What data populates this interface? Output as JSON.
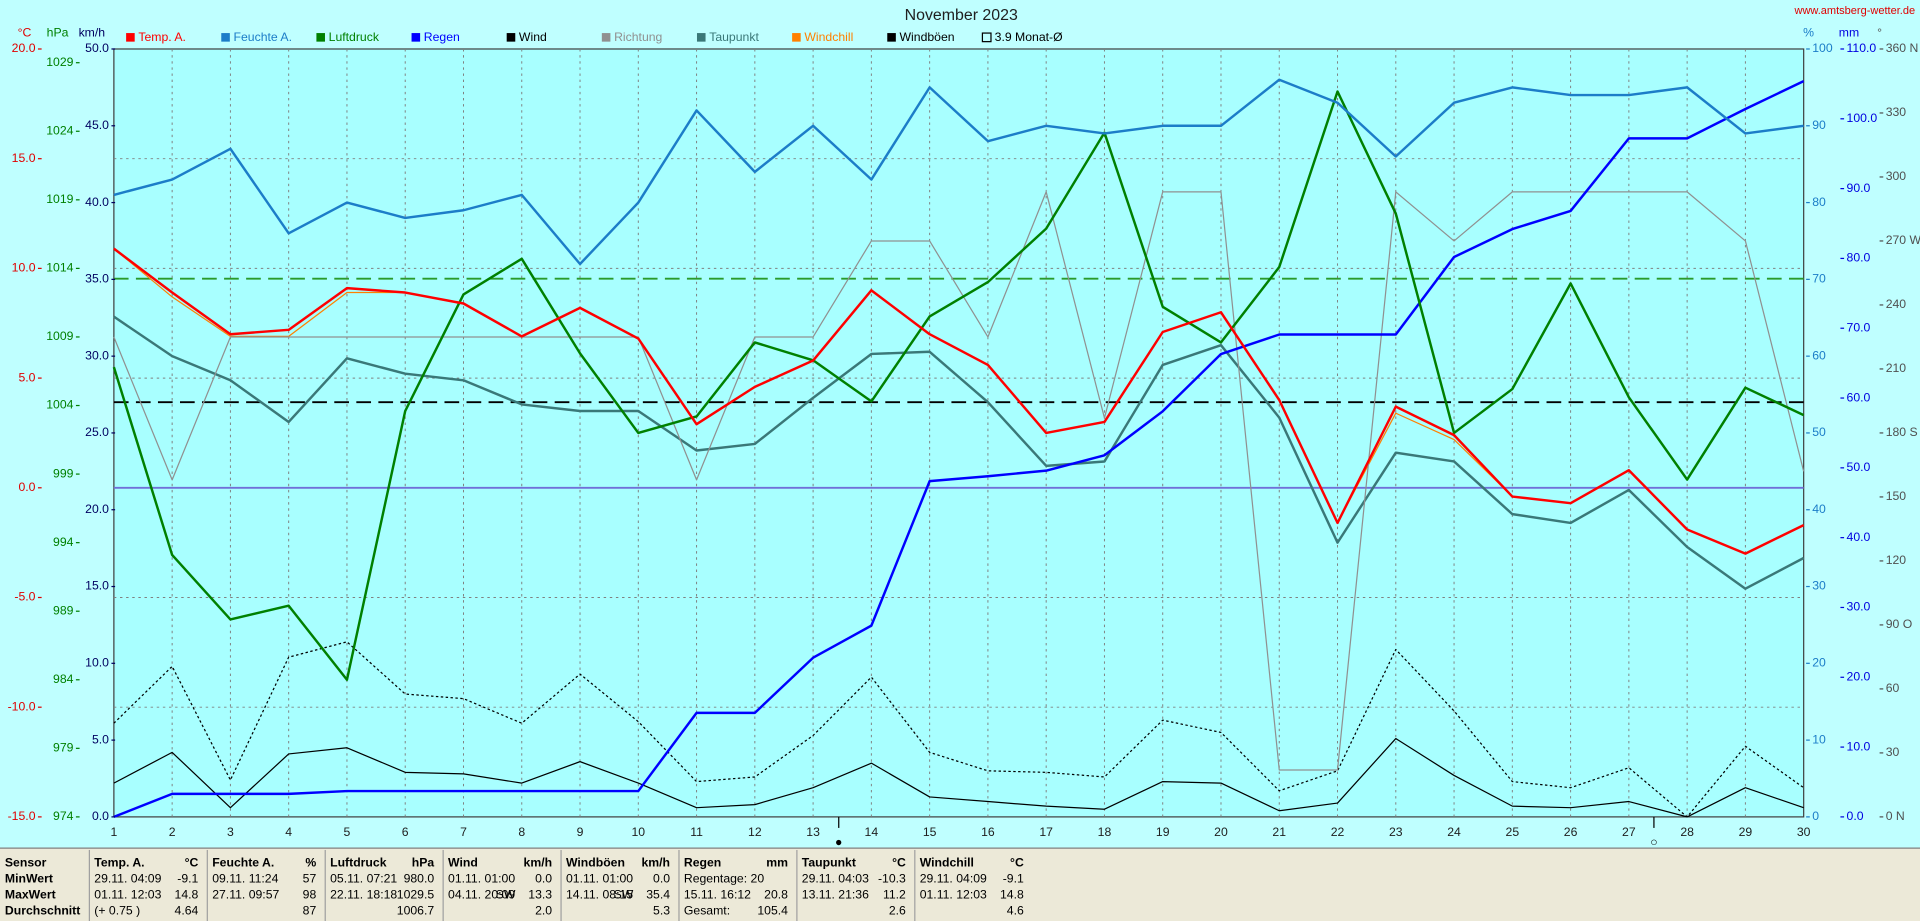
{
  "chart_data": {
    "type": "line",
    "title": "November 2023",
    "site": "www.amtsberg-wetter.de",
    "x": [
      1,
      2,
      3,
      4,
      5,
      6,
      7,
      8,
      9,
      10,
      11,
      12,
      13,
      14,
      15,
      16,
      17,
      18,
      19,
      20,
      21,
      22,
      23,
      24,
      25,
      26,
      27,
      28,
      29,
      30
    ],
    "xlim": [
      1,
      30
    ],
    "grid": true,
    "axes": [
      {
        "title": "°C",
        "side": "left",
        "color": "#e00000",
        "lim": [
          -15,
          20
        ],
        "ticks": [
          {
            "value": -15,
            "label": "-15.0"
          },
          {
            "value": -10,
            "label": "-10.0"
          },
          {
            "value": -5,
            "label": "-5.0"
          },
          {
            "value": 0,
            "label": "0.0"
          },
          {
            "value": 5,
            "label": "5.0"
          },
          {
            "value": 10,
            "label": "10.0"
          },
          {
            "value": 15,
            "label": "15.0"
          },
          {
            "value": 20,
            "label": "20.0"
          }
        ]
      },
      {
        "title": "hPa",
        "side": "left",
        "color": "#008000",
        "lim": [
          974,
          1030
        ],
        "ticks": [
          974,
          979,
          984,
          989,
          994,
          999,
          1004,
          1009,
          1014,
          1019,
          1024,
          1029
        ]
      },
      {
        "title": "km/h",
        "side": "left",
        "color": "#000060",
        "lim": [
          0,
          50
        ],
        "ticks": [
          {
            "value": 0,
            "label": "0.0"
          },
          {
            "value": 5,
            "label": "5.0"
          },
          {
            "value": 10,
            "label": "10.0"
          },
          {
            "value": 15,
            "label": "15.0"
          },
          {
            "value": 20,
            "label": "20.0"
          },
          {
            "value": 25,
            "label": "25.0"
          },
          {
            "value": 30,
            "label": "30.0"
          },
          {
            "value": 35,
            "label": "35.0"
          },
          {
            "value": 40,
            "label": "40.0"
          },
          {
            "value": 45,
            "label": "45.0"
          },
          {
            "value": 50,
            "label": "50.0"
          }
        ]
      },
      {
        "title": "%",
        "side": "right",
        "color": "#1c7dc8",
        "lim": [
          0,
          100
        ],
        "ticks": [
          0,
          10,
          20,
          30,
          40,
          50,
          60,
          70,
          80,
          90,
          100
        ]
      },
      {
        "title": "mm",
        "side": "right",
        "color": "#0000e0",
        "lim": [
          0,
          110
        ],
        "ticks": [
          {
            "value": 0,
            "label": "0.0"
          },
          {
            "value": 10,
            "label": "10.0"
          },
          {
            "value": 20,
            "label": "20.0"
          },
          {
            "value": 30,
            "label": "30.0"
          },
          {
            "value": 40,
            "label": "40.0"
          },
          {
            "value": 50,
            "label": "50.0"
          },
          {
            "value": 60,
            "label": "60.0"
          },
          {
            "value": 70,
            "label": "70.0"
          },
          {
            "value": 80,
            "label": "80.0"
          },
          {
            "value": 90,
            "label": "90.0"
          },
          {
            "value": 100,
            "label": "100.0"
          },
          {
            "value": 110,
            "label": "110.0"
          }
        ]
      },
      {
        "title": "°",
        "side": "right",
        "color": "#505050",
        "lim": [
          0,
          360
        ],
        "ticks": [
          {
            "value": 0,
            "label": "0 N"
          },
          30,
          60,
          {
            "value": 90,
            "label": "90 O"
          },
          120,
          150,
          {
            "value": 180,
            "label": "180 S"
          },
          210,
          240,
          {
            "value": 270,
            "label": "270 W"
          },
          300,
          330,
          {
            "value": 360,
            "label": "360 N"
          }
        ]
      }
    ],
    "series": [
      {
        "name": "Temp. A.",
        "color": "#ff0000",
        "axis": 0,
        "style": "bold",
        "values": [
          10.9,
          8.9,
          7.0,
          7.2,
          9.1,
          8.9,
          8.4,
          6.9,
          8.2,
          6.8,
          2.9,
          4.6,
          5.8,
          9.0,
          7.0,
          5.6,
          2.5,
          3.0,
          7.1,
          8.0,
          4.0,
          -1.6,
          3.7,
          2.4,
          -0.4,
          -0.7,
          0.8,
          -1.9,
          -3.0,
          -1.7
        ]
      },
      {
        "name": "Feuchte A.",
        "color": "#1c7dc8",
        "axis": 3,
        "style": "bold",
        "values": [
          81,
          83,
          87,
          76,
          80,
          78,
          79,
          81,
          72,
          80,
          92,
          84,
          90,
          83,
          95,
          88,
          90,
          89,
          90,
          90,
          96,
          93,
          86,
          93,
          95,
          94,
          94,
          95,
          89,
          90
        ]
      },
      {
        "name": "Luftdruck",
        "color": "#008000",
        "axis": 1,
        "style": "bold",
        "values": [
          1006.8,
          993.1,
          988.4,
          989.4,
          984.0,
          1003.6,
          1012.1,
          1014.7,
          1007.8,
          1002.0,
          1003.2,
          1008.6,
          1007.3,
          1004.3,
          1010.5,
          1013.0,
          1016.9,
          1023.9,
          1011.2,
          1008.6,
          1014.1,
          1026.9,
          1018.0,
          1002.0,
          1005.2,
          1012.9,
          1004.6,
          998.6,
          1005.3,
          1003.3
        ]
      },
      {
        "name": "Regen",
        "color": "#0000ff",
        "axis": 4,
        "style": "bold",
        "values": [
          0,
          3.3,
          3.3,
          3.3,
          3.7,
          3.7,
          3.7,
          3.7,
          3.7,
          3.7,
          14.9,
          14.9,
          22.8,
          27.4,
          48.1,
          48.8,
          49.6,
          51.8,
          58.1,
          66.3,
          69.1,
          69.1,
          69.1,
          80.2,
          84.2,
          86.8,
          97.2,
          97.2,
          101.4,
          105.4
        ]
      },
      {
        "name": "Wind",
        "color": "#000000",
        "axis": 2,
        "style": "thin",
        "values": [
          2.2,
          4.2,
          0.6,
          4.1,
          4.5,
          2.9,
          2.8,
          2.2,
          3.6,
          2.2,
          0.6,
          0.8,
          1.9,
          3.5,
          1.3,
          1.0,
          0.7,
          0.5,
          2.3,
          2.2,
          0.4,
          0.9,
          5.1,
          2.7,
          0.7,
          0.6,
          1.0,
          0,
          1.9,
          0.6
        ]
      },
      {
        "name": "Richtung",
        "color": "#909090",
        "axis": 5,
        "style": "thin",
        "values": [
          225,
          158,
          225,
          225,
          225,
          225,
          225,
          225,
          225,
          225,
          158,
          225,
          225,
          270,
          270,
          225,
          293,
          187,
          293,
          293,
          22,
          22,
          293,
          270,
          293,
          293,
          293,
          293,
          270,
          162
        ]
      },
      {
        "name": "Taupunkt",
        "color": "#3a7878",
        "axis": 0,
        "style": "bold",
        "values": [
          7.8,
          6.0,
          4.9,
          3.0,
          5.9,
          5.2,
          4.9,
          3.8,
          3.5,
          3.5,
          1.7,
          2.0,
          4.1,
          6.1,
          6.2,
          3.9,
          1.0,
          1.2,
          5.6,
          6.5,
          3.2,
          -2.5,
          1.6,
          1.2,
          -1.2,
          -1.6,
          -0.1,
          -2.7,
          -4.6,
          -3.2
        ]
      },
      {
        "name": "Windchill",
        "color": "#ff8000",
        "axis": 0,
        "style": "thin",
        "values": [
          10.9,
          8.7,
          6.9,
          6.9,
          8.9,
          8.9,
          8.4,
          6.9,
          8.2,
          6.8,
          2.9,
          4.6,
          5.8,
          9.0,
          7.0,
          5.6,
          2.5,
          3.0,
          7.1,
          8.0,
          4.0,
          -1.6,
          3.4,
          2.2,
          -0.4,
          -0.7,
          0.8,
          -1.9,
          -3.0,
          -1.7
        ]
      },
      {
        "name": "Windböen",
        "color": "#000000",
        "axis": 2,
        "style": "dotted",
        "values": [
          6.1,
          9.8,
          2.4,
          10.4,
          11.4,
          8.0,
          7.7,
          6.1,
          9.3,
          6.2,
          2.3,
          2.6,
          5.3,
          9.1,
          4.2,
          3.0,
          2.9,
          2.6,
          6.3,
          5.5,
          1.7,
          3.0,
          10.9,
          6.9,
          2.3,
          1.9,
          3.2,
          0,
          4.6,
          1.9
        ]
      }
    ],
    "reference_lines": [
      {
        "name": "3.9 Monat-Ø",
        "value": 3.9,
        "axis": 0,
        "color": "#000000",
        "style": "dashed"
      },
      {
        "value": 1013.25,
        "axis": 1,
        "color": "#2a9a2a",
        "style": "dashed"
      },
      {
        "value": 0,
        "axis": 0,
        "color": "#7070d8",
        "style": "solid"
      }
    ],
    "moon_phases": [
      {
        "x": 13.44,
        "symbol": "●"
      },
      {
        "x": 27.43,
        "symbol": "○"
      }
    ]
  },
  "table": {
    "header": "Sensor",
    "row_labels": [
      "MinWert",
      "MaxWert",
      "Durchschnitt"
    ],
    "columns": [
      {
        "title": "Temp. A.",
        "unit": "°C",
        "cells": [
          {
            "date": "29.11.  04:09",
            "value": "-9.1"
          },
          {
            "date": "01.11.  12:03",
            "value": "14.8"
          },
          {
            "date": "(+ 0.75 )",
            "value": "4.64"
          }
        ]
      },
      {
        "title": "Feuchte A.",
        "unit": "%",
        "cells": [
          {
            "date": "09.11.  11:24",
            "value": "57"
          },
          {
            "date": "27.11.  09:57",
            "value": "98"
          },
          {
            "value": "87"
          }
        ]
      },
      {
        "title": "Luftdruck",
        "unit": "hPa",
        "cells": [
          {
            "date": "05.11.  07:21",
            "value": "980.0"
          },
          {
            "date": "22.11.  18:18",
            "value": "1029.5"
          },
          {
            "value": "1006.7"
          }
        ]
      },
      {
        "title": "Wind",
        "unit": "km/h",
        "cells": [
          {
            "date": "01.11.  01:00",
            "value": "0.0"
          },
          {
            "date": "04.11.  20:09",
            "extra": "SW",
            "value": "13.3"
          },
          {
            "value": "2.0"
          }
        ]
      },
      {
        "title": "Windböen",
        "unit": "km/h",
        "cells": [
          {
            "date": "01.11.  01:00",
            "value": "0.0"
          },
          {
            "date": "14.11.  08:15",
            "extra": "SW",
            "value": "35.4"
          },
          {
            "value": "5.3"
          }
        ]
      },
      {
        "title": "Regen",
        "unit": "mm",
        "cells": [
          {
            "date": "Regentage: 20"
          },
          {
            "date": "15.11.  16:12",
            "value": "20.8"
          },
          {
            "date": "Gesamt:",
            "value": "105.4"
          }
        ]
      },
      {
        "title": "Taupunkt",
        "unit": "°C",
        "cells": [
          {
            "date": "29.11.  04:03",
            "value": "-10.3"
          },
          {
            "date": "13.11.  21:36",
            "value": "11.2"
          },
          {
            "value": "2.6"
          }
        ]
      },
      {
        "title": "Windchill",
        "unit": "°C",
        "cells": [
          {
            "date": "29.11.  04:09",
            "value": "-9.1"
          },
          {
            "date": "01.11.  12:03",
            "value": "14.8"
          },
          {
            "value": "4.6"
          }
        ]
      }
    ]
  }
}
